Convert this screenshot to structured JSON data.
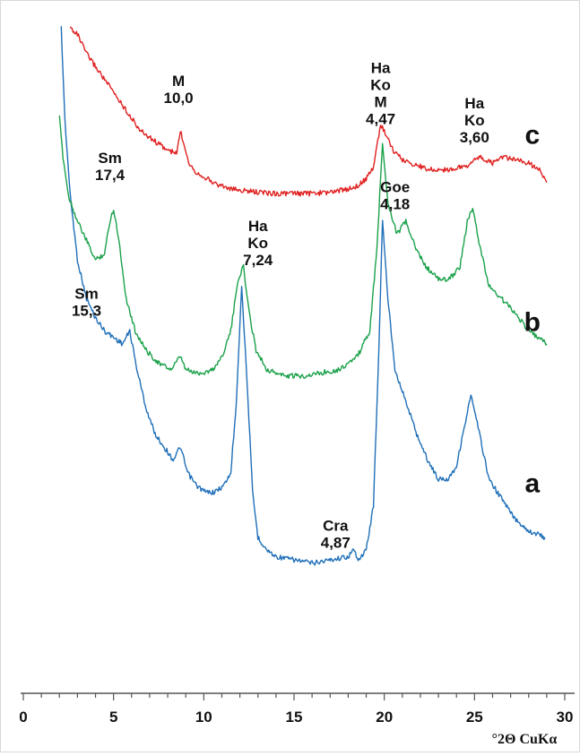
{
  "chart_data": {
    "type": "line",
    "xlabel": "°2Θ CuKα",
    "ylabel": "",
    "xlim": [
      0,
      30
    ],
    "x_ticks": [
      "0",
      "5",
      "10",
      "15",
      "20",
      "25",
      "30"
    ],
    "grid": false,
    "legend": "none",
    "series": [
      {
        "name": "a",
        "color": "#1f6fb8",
        "points": [
          [
            2.1,
            100
          ],
          [
            2.3,
            86
          ],
          [
            2.6,
            74
          ],
          [
            3.0,
            64
          ],
          [
            3.5,
            58
          ],
          [
            4.0,
            55
          ],
          [
            4.5,
            53
          ],
          [
            5.0,
            52
          ],
          [
            5.5,
            51
          ],
          [
            5.9,
            53
          ],
          [
            6.3,
            47
          ],
          [
            6.8,
            41
          ],
          [
            7.3,
            37
          ],
          [
            7.8,
            35
          ],
          [
            8.3,
            33
          ],
          [
            8.7,
            35
          ],
          [
            9.1,
            31
          ],
          [
            9.6,
            29
          ],
          [
            10.1,
            28
          ],
          [
            10.6,
            28
          ],
          [
            11.1,
            29
          ],
          [
            11.5,
            31
          ],
          [
            11.8,
            42
          ],
          [
            12.1,
            60
          ],
          [
            12.4,
            45
          ],
          [
            12.7,
            28
          ],
          [
            13.0,
            21
          ],
          [
            13.5,
            19
          ],
          [
            14.0,
            18
          ],
          [
            15.0,
            17.5
          ],
          [
            16.0,
            17
          ],
          [
            17.0,
            17.5
          ],
          [
            18.0,
            18
          ],
          [
            18.3,
            19
          ],
          [
            18.6,
            17.5
          ],
          [
            19.0,
            19
          ],
          [
            19.4,
            26
          ],
          [
            19.7,
            50
          ],
          [
            19.9,
            70
          ],
          [
            20.2,
            58
          ],
          [
            20.6,
            47
          ],
          [
            21.2,
            42
          ],
          [
            21.8,
            37
          ],
          [
            22.4,
            33
          ],
          [
            23.0,
            30
          ],
          [
            23.5,
            30
          ],
          [
            24.0,
            32
          ],
          [
            24.5,
            39
          ],
          [
            24.8,
            43
          ],
          [
            25.2,
            38
          ],
          [
            25.8,
            30
          ],
          [
            26.5,
            27
          ],
          [
            27.2,
            24
          ],
          [
            28.0,
            22
          ],
          [
            28.9,
            21
          ]
        ]
      },
      {
        "name": "b",
        "color": "#1aa14a",
        "points": [
          [
            2.0,
            86
          ],
          [
            2.2,
            80
          ],
          [
            2.5,
            74
          ],
          [
            3.0,
            70
          ],
          [
            3.5,
            67
          ],
          [
            4.0,
            64
          ],
          [
            4.5,
            65
          ],
          [
            4.8,
            70
          ],
          [
            5.0,
            72
          ],
          [
            5.3,
            67
          ],
          [
            5.7,
            58
          ],
          [
            6.2,
            53
          ],
          [
            6.8,
            50
          ],
          [
            7.5,
            48
          ],
          [
            8.2,
            47
          ],
          [
            8.7,
            49
          ],
          [
            9.0,
            47
          ],
          [
            9.5,
            46.5
          ],
          [
            10.0,
            46.5
          ],
          [
            10.5,
            47
          ],
          [
            11.0,
            49
          ],
          [
            11.5,
            53
          ],
          [
            11.9,
            61
          ],
          [
            12.2,
            63
          ],
          [
            12.5,
            56
          ],
          [
            12.9,
            50
          ],
          [
            13.5,
            47
          ],
          [
            14.5,
            46
          ],
          [
            15.5,
            46
          ],
          [
            16.5,
            46.5
          ],
          [
            17.5,
            47
          ],
          [
            18.5,
            49
          ],
          [
            19.2,
            53
          ],
          [
            19.6,
            66
          ],
          [
            19.9,
            82
          ],
          [
            20.2,
            73
          ],
          [
            20.7,
            68
          ],
          [
            21.2,
            70
          ],
          [
            21.7,
            66
          ],
          [
            22.3,
            63
          ],
          [
            23.0,
            61
          ],
          [
            23.6,
            61
          ],
          [
            24.2,
            63
          ],
          [
            24.6,
            70
          ],
          [
            24.9,
            72
          ],
          [
            25.3,
            66
          ],
          [
            25.8,
            60
          ],
          [
            26.5,
            58
          ],
          [
            27.2,
            56
          ],
          [
            28.0,
            53
          ],
          [
            29.0,
            51
          ]
        ]
      },
      {
        "name": "c",
        "color": "#e02020",
        "points": [
          [
            2.6,
            100
          ],
          [
            3.0,
            99
          ],
          [
            3.5,
            96
          ],
          [
            4.0,
            94
          ],
          [
            4.5,
            92
          ],
          [
            5.0,
            90
          ],
          [
            5.5,
            88
          ],
          [
            6.0,
            86
          ],
          [
            6.5,
            84
          ],
          [
            7.0,
            83
          ],
          [
            7.5,
            82
          ],
          [
            8.0,
            81
          ],
          [
            8.5,
            80.5
          ],
          [
            8.7,
            84
          ],
          [
            8.9,
            82
          ],
          [
            9.2,
            79
          ],
          [
            9.6,
            77.5
          ],
          [
            10.0,
            77
          ],
          [
            10.5,
            76
          ],
          [
            11.0,
            75.5
          ],
          [
            11.5,
            75
          ],
          [
            12.0,
            74.8
          ],
          [
            13.0,
            74.5
          ],
          [
            14.0,
            74.3
          ],
          [
            15.0,
            74.3
          ],
          [
            16.0,
            74.3
          ],
          [
            17.0,
            74.5
          ],
          [
            18.0,
            75
          ],
          [
            18.5,
            75.5
          ],
          [
            19.0,
            76.5
          ],
          [
            19.4,
            78.5
          ],
          [
            19.8,
            85
          ],
          [
            20.0,
            84
          ],
          [
            20.5,
            81
          ],
          [
            21.0,
            79.5
          ],
          [
            21.5,
            79
          ],
          [
            22.0,
            78.5
          ],
          [
            22.5,
            78
          ],
          [
            23.5,
            78
          ],
          [
            24.5,
            78.5
          ],
          [
            25.3,
            80
          ],
          [
            25.6,
            79.5
          ],
          [
            26.0,
            79
          ],
          [
            26.6,
            80
          ],
          [
            27.2,
            79.5
          ],
          [
            28.0,
            79
          ],
          [
            28.6,
            78
          ],
          [
            29.0,
            76
          ]
        ]
      }
    ],
    "annotations": [
      {
        "lines": [
          "M",
          "10,0"
        ],
        "x": 8.6,
        "y": 91
      },
      {
        "lines": [
          "Ha",
          "Ko",
          "M",
          "4,47"
        ],
        "x": 19.8,
        "y": 93
      },
      {
        "lines": [
          "Ha",
          "Ko",
          "3,60"
        ],
        "x": 25.0,
        "y": 87.5
      },
      {
        "lines": [
          "Sm",
          "17,4"
        ],
        "x": 4.8,
        "y": 79
      },
      {
        "lines": [
          "Goe",
          "4,18"
        ],
        "x": 20.6,
        "y": 74.5
      },
      {
        "lines": [
          "Ha",
          "Ko",
          "7,24"
        ],
        "x": 13.0,
        "y": 68.5
      },
      {
        "lines": [
          "Sm",
          "15,3"
        ],
        "x": 3.5,
        "y": 58
      },
      {
        "lines": [
          "Cra",
          "4,87"
        ],
        "x": 17.3,
        "y": 22
      }
    ],
    "curve_labels": [
      {
        "text": "c",
        "x": 28.2,
        "y": 82
      },
      {
        "text": "b",
        "x": 28.2,
        "y": 53
      },
      {
        "text": "a",
        "x": 28.2,
        "y": 28
      }
    ]
  }
}
